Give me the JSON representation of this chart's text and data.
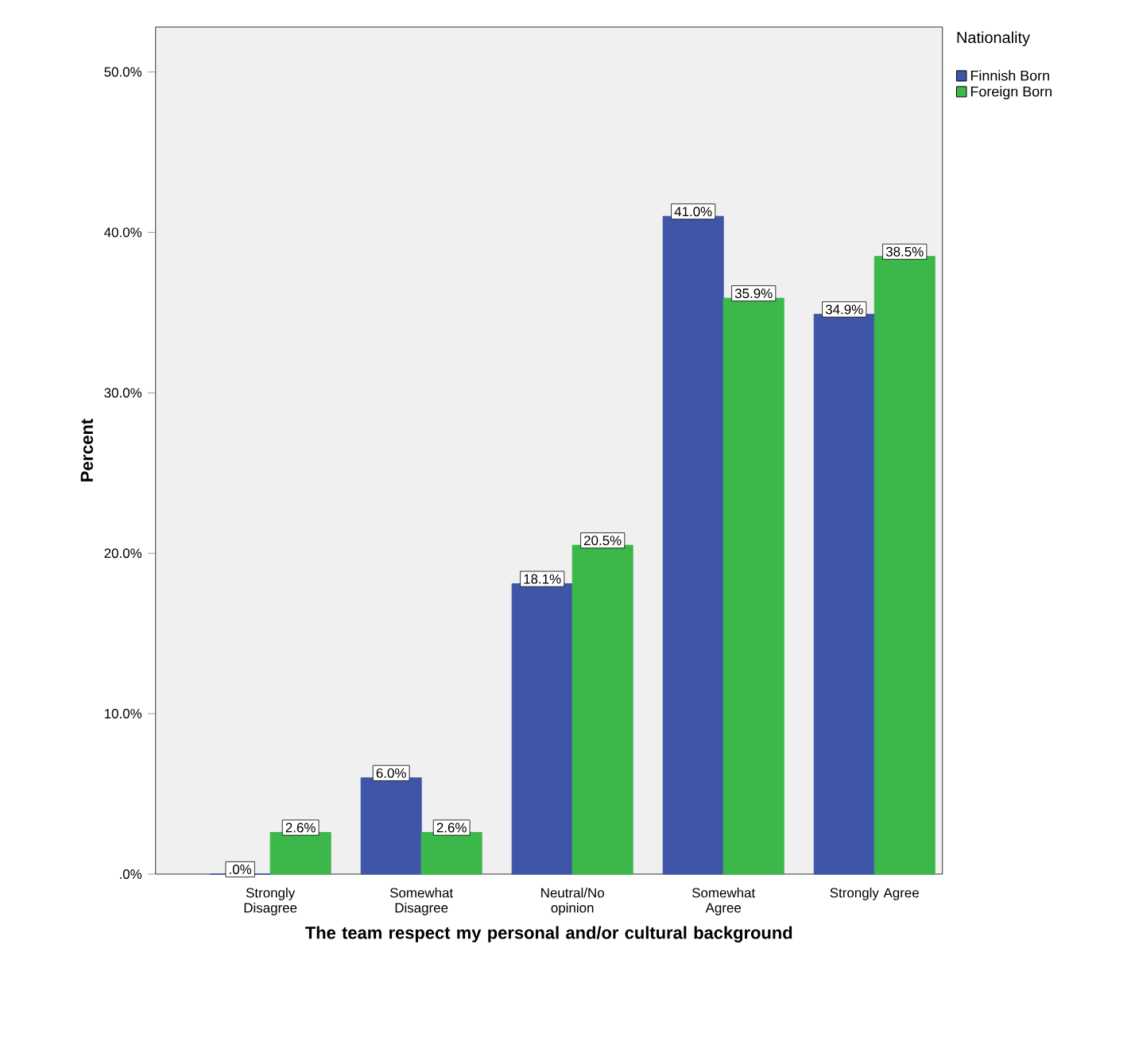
{
  "chart_data": {
    "type": "bar",
    "xlabel": "The team respect my personal and/or cultural background",
    "ylabel": "Percent",
    "legend_title": "Nationality",
    "legend": "top right",
    "categories": [
      "Strongly Disagree",
      "Somewhat Disagree",
      "Neutral/No opinion",
      "Somewhat Agree",
      "Strongly Agree"
    ],
    "series": [
      {
        "name": "Finnish Born",
        "color": "#3f55a8",
        "values": [
          0,
          6.0,
          18.1,
          41.0,
          34.9
        ],
        "value_labels": [
          ".0%",
          "6.0%",
          "18.1%",
          "41.0%",
          "34.9%"
        ]
      },
      {
        "name": "Foreign Born",
        "color": "#3cb84a",
        "values": [
          2.6,
          2.6,
          20.5,
          35.9,
          38.5
        ],
        "value_labels": [
          "2.6%",
          "2.6%",
          "20.5%",
          "35.9%",
          "38.5%"
        ]
      }
    ],
    "ylim": [
      0,
      52.8
    ],
    "yticks": [
      {
        "value": 0,
        "label": ".0%"
      },
      {
        "value": 10,
        "label": "10.0%"
      },
      {
        "value": 20,
        "label": "20.0%"
      },
      {
        "value": 30,
        "label": "30.0%"
      },
      {
        "value": 40,
        "label": "40.0%"
      },
      {
        "value": 50,
        "label": "50.0%"
      }
    ]
  }
}
